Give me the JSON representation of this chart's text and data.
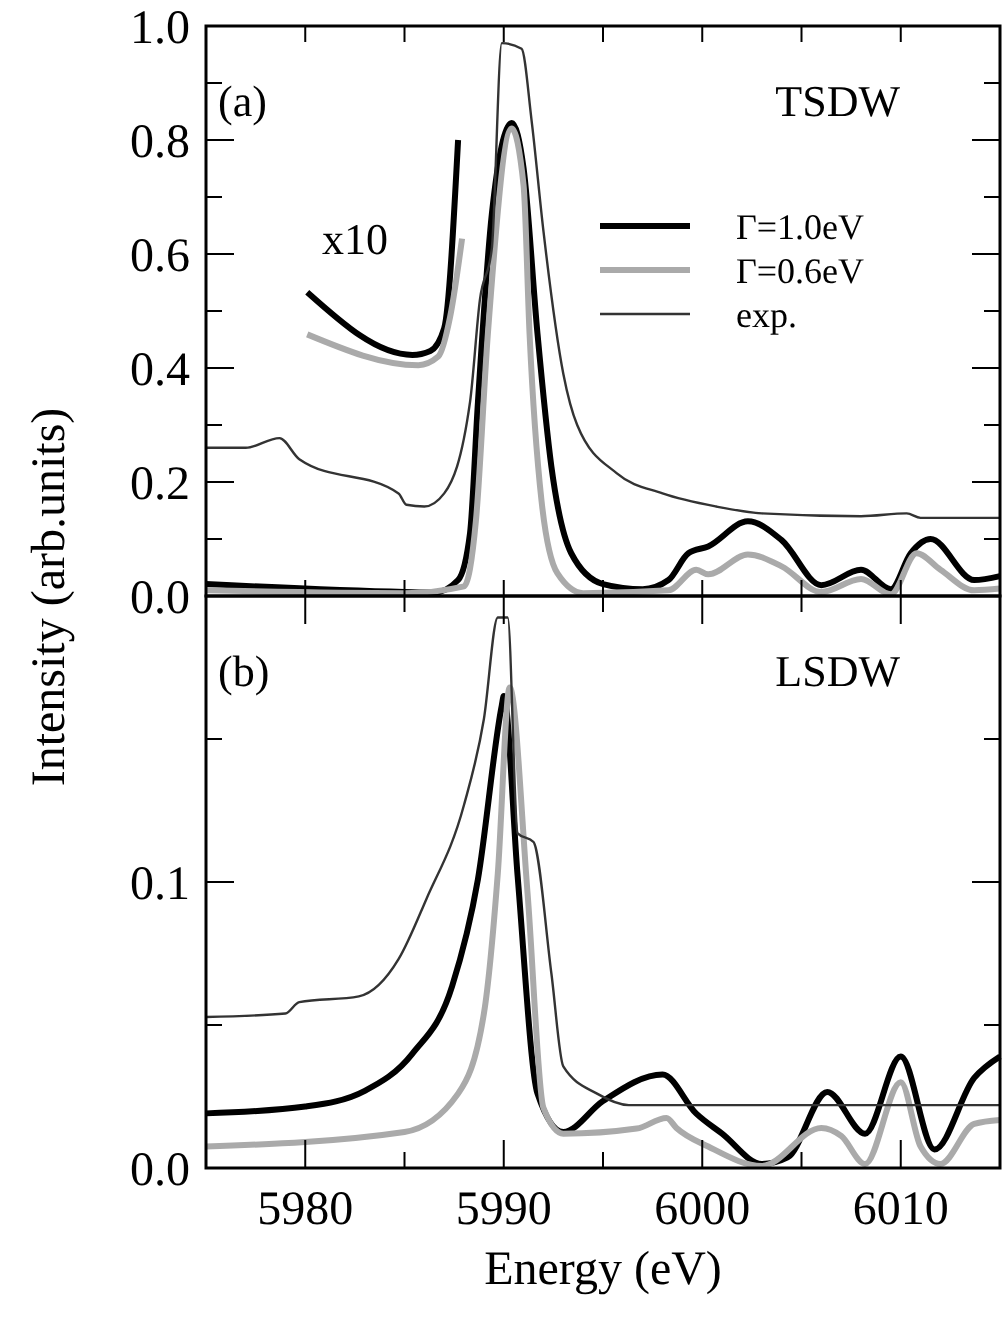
{
  "chart_data": [
    {
      "type": "line",
      "ylabel": "Intensity (arb.units)",
      "xlim": [
        5975,
        6015
      ],
      "ylim": [
        0,
        1.0
      ],
      "xticks": [
        {
          "value": 5975,
          "label": null
        },
        {
          "value": 5980,
          "label": null
        },
        {
          "value": 5985,
          "label": null
        },
        {
          "value": 5990,
          "label": null
        },
        {
          "value": 5995,
          "label": null
        },
        {
          "value": 6000,
          "label": null
        },
        {
          "value": 6005,
          "label": null
        },
        {
          "value": 6010,
          "label": null
        },
        {
          "value": 6015,
          "label": null
        }
      ],
      "yticks": [
        {
          "value": 0,
          "label": "0.0"
        },
        {
          "value": 0.1,
          "label": null
        },
        0.2,
        {
          "value": 0.3,
          "label": null
        },
        0.4,
        {
          "value": 0.5,
          "label": null
        },
        0.6,
        {
          "value": 0.7,
          "label": null
        },
        0.8,
        {
          "value": 0.9,
          "label": null
        },
        {
          "value": 1.0,
          "label": "1.0"
        }
      ],
      "tick_labels": "y",
      "legend": "top right",
      "grid": false,
      "line_style": "solid",
      "annotations": [
        "(a)",
        "TSDW",
        "x10"
      ],
      "series": [
        {
          "name": "Γ=1.0eV",
          "color": "#000000",
          "x": [
            5975,
            5985,
            5986.5,
            5987.7,
            5988.3,
            5988.7,
            5989.4,
            5990.4,
            5991.0,
            5991.7,
            5992.4,
            5993.4,
            5995,
            5997,
            5998.3,
            5999.3,
            6000.3,
            6002.3,
            6004,
            6006,
            6008,
            6009.5,
            6010.5,
            6011.5,
            6013.7,
            6015
          ],
          "values": [
            0.021,
            0.007,
            0.006,
            0.028,
            0.11,
            0.34,
            0.67,
            0.83,
            0.75,
            0.46,
            0.227,
            0.075,
            0.021,
            0.012,
            0.028,
            0.075,
            0.087,
            0.131,
            0.098,
            0.019,
            0.046,
            0.012,
            0.075,
            0.1,
            0.028,
            0.035
          ]
        },
        {
          "name": "Γ=0.6eV",
          "color": "#aaaaaa",
          "x": [
            5975,
            5985,
            5988,
            5988.6,
            5989.2,
            5990.4,
            5991,
            5991.3,
            5991.9,
            5992.7,
            5994,
            5998.3,
            5999.7,
            6000.3,
            6002.3,
            6004,
            6006,
            6008,
            6009.5,
            6010.8,
            6012,
            6013.7,
            6015
          ],
          "values": [
            0.01,
            0.005,
            0.017,
            0.133,
            0.46,
            0.82,
            0.72,
            0.46,
            0.168,
            0.04,
            0.005,
            0.01,
            0.046,
            0.038,
            0.073,
            0.052,
            0.007,
            0.03,
            0.003,
            0.075,
            0.046,
            0.01,
            0.013
          ]
        },
        {
          "name": "exp.",
          "color": "#333333",
          "x": [
            5975,
            5977,
            5978.7,
            5979.7,
            5984.7,
            5985.1,
            5986,
            5987,
            5988.3,
            5988.8,
            5989.4,
            5989.9,
            5990.9,
            5991.4,
            5992.0,
            5993.0,
            5993.7,
            5995.7,
            5998,
            6000.7,
            6003,
            6008,
            6010.3,
            6011,
            6015
          ],
          "values": [
            0.26,
            0.26,
            0.277,
            0.24,
            0.18,
            0.16,
            0.157,
            0.18,
            0.34,
            0.52,
            0.61,
            0.97,
            0.96,
            0.835,
            0.64,
            0.39,
            0.3,
            0.215,
            0.18,
            0.157,
            0.145,
            0.14,
            0.145,
            0.137,
            0.137
          ]
        },
        {
          "color": "#000000",
          "x": [
            5980.1,
            5985.4,
            5986.3,
            5987,
            5987.7
          ],
          "values": [
            0.533,
            0.423,
            0.43,
            0.47,
            0.8
          ]
        },
        {
          "color": "#aaaaaa",
          "x": [
            5980.1,
            5985.7,
            5986.7,
            5987.3,
            5987.9
          ],
          "values": [
            0.459,
            0.405,
            0.42,
            0.49,
            0.627
          ]
        }
      ]
    },
    {
      "type": "line",
      "xlabel": "Energy (eV)",
      "xlim": [
        5975,
        6015
      ],
      "ylim": [
        0,
        0.2
      ],
      "xticks": [
        {
          "value": 5975,
          "label": null
        },
        5980,
        {
          "value": 5985,
          "label": null
        },
        5990,
        {
          "value": 5995,
          "label": null
        },
        6000,
        {
          "value": 6005,
          "label": null
        },
        6010,
        {
          "value": 6015,
          "label": null
        }
      ],
      "yticks": [
        {
          "value": 0,
          "label": "0.0"
        },
        {
          "value": 0.05,
          "label": null
        },
        0.1,
        {
          "value": 0.15,
          "label": null
        }
      ],
      "grid": false,
      "line_style": "solid",
      "annotations": [
        "(b)",
        "LSDW"
      ],
      "series": [
        {
          "color": "#000000",
          "x": [
            5975,
            5980,
            5983,
            5985.4,
            5987.4,
            5988.7,
            5989.9,
            5990,
            5990.7,
            5991.7,
            5993,
            5995,
            5998,
            5999.7,
            6001,
            6003,
            6004.3,
            6006.3,
            6008.2,
            6010,
            6011.7,
            6013.7,
            6015
          ],
          "values": [
            0.0191,
            0.0215,
            0.027,
            0.04,
            0.0636,
            0.101,
            0.1617,
            0.165,
            0.102,
            0.026,
            0.0126,
            0.0234,
            0.0327,
            0.019,
            0.012,
            0.0014,
            0.0037,
            0.0266,
            0.012,
            0.039,
            0.0065,
            0.0315,
            0.039
          ]
        },
        {
          "color": "#aaaaaa",
          "x": [
            5975,
            5985,
            5987.7,
            5989,
            5989.7,
            5990.3,
            5991.2,
            5992,
            5993,
            5996.7,
            5998.2,
            5998.7,
            6000.3,
            6003,
            6006,
            6007,
            6008.2,
            6010,
            6011,
            6012,
            6013.7,
            6015
          ],
          "values": [
            0.0075,
            0.0126,
            0.026,
            0.054,
            0.103,
            0.168,
            0.096,
            0.021,
            0.012,
            0.0138,
            0.0175,
            0.014,
            0.0075,
            0.0007,
            0.014,
            0.0112,
            0.0014,
            0.03,
            0.0075,
            0.0014,
            0.0154,
            0.0168
          ]
        },
        {
          "color": "#333333",
          "x": [
            5975,
            5979,
            5979.7,
            5982.7,
            5984.7,
            5986.1,
            5988,
            5989,
            5989.7,
            5990.2,
            5990.7,
            5991.5,
            5992.4,
            5993,
            5994.7,
            5996.3,
            6015
          ],
          "values": [
            0.0528,
            0.054,
            0.058,
            0.06,
            0.073,
            0.094,
            0.127,
            0.157,
            0.1925,
            0.1925,
            0.117,
            0.114,
            0.068,
            0.0355,
            0.026,
            0.022,
            0.022
          ]
        }
      ]
    }
  ]
}
